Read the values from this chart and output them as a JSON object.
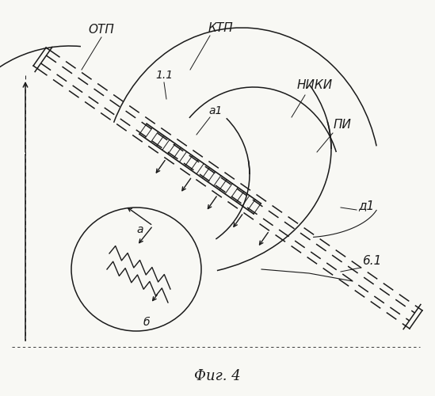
{
  "title": "Фиг. 4",
  "bg_color": "#f8f8f4",
  "line_color": "#1a1a1a",
  "labels": {
    "OTP": "ОТП",
    "KTP": "КТП",
    "label_11": "1.1",
    "label_a1": "а1",
    "NIKI": "НИКИ",
    "PI": "ПИ",
    "delta1": "д1",
    "b1": "6.1",
    "a": "а",
    "b": "б"
  },
  "fig_width": 5.49,
  "fig_height": 5.0,
  "dpi": 100
}
